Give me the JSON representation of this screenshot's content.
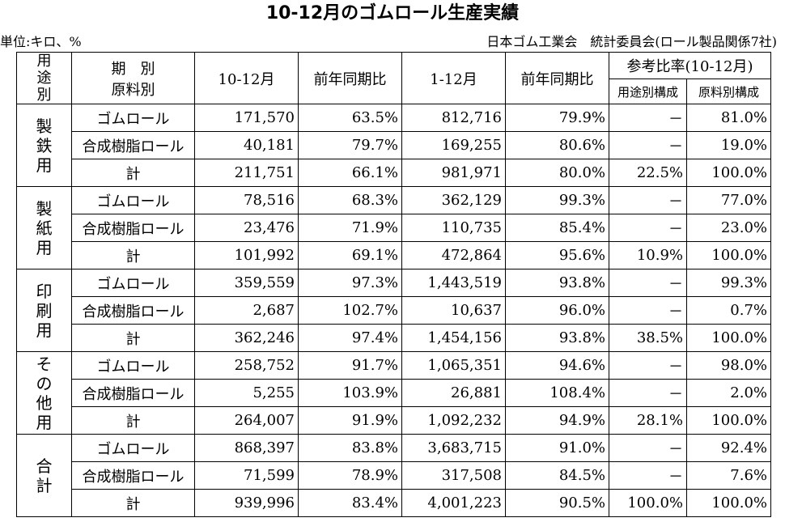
{
  "title": "10-12月のゴムロール生産実績",
  "unit": "単位:キロ、%",
  "source": "日本ゴム工業会　統計委員会(ロール製品関係7社)",
  "header": {
    "usage": "用途別",
    "period": "期　別",
    "material": "原料別",
    "col_q4": "10-12月",
    "col_q4_yoy": "前年同期比",
    "col_year": "1-12月",
    "col_year_yoy": "前年同期比",
    "ref_ratio": "参考比率(10-12月)",
    "ref_usage": "用途別構成",
    "ref_material": "原料別構成"
  },
  "groups": [
    {
      "label": "製鉄用",
      "rows": [
        {
          "name": "ゴムロール",
          "q4": "171,570",
          "q4_yoy": "63.5%",
          "year": "812,716",
          "year_yoy": "79.9%",
          "usage_ratio": "－",
          "material_ratio": "81.0%"
        },
        {
          "name": "合成樹脂ロール",
          "q4": "40,181",
          "q4_yoy": "79.7%",
          "year": "169,255",
          "year_yoy": "80.6%",
          "usage_ratio": "－",
          "material_ratio": "19.0%"
        },
        {
          "name": "計",
          "q4": "211,751",
          "q4_yoy": "66.1%",
          "year": "981,971",
          "year_yoy": "80.0%",
          "usage_ratio": "22.5%",
          "material_ratio": "100.0%"
        }
      ]
    },
    {
      "label": "製紙用",
      "rows": [
        {
          "name": "ゴムロール",
          "q4": "78,516",
          "q4_yoy": "68.3%",
          "year": "362,129",
          "year_yoy": "99.3%",
          "usage_ratio": "－",
          "material_ratio": "77.0%"
        },
        {
          "name": "合成樹脂ロール",
          "q4": "23,476",
          "q4_yoy": "71.9%",
          "year": "110,735",
          "year_yoy": "85.4%",
          "usage_ratio": "－",
          "material_ratio": "23.0%"
        },
        {
          "name": "計",
          "q4": "101,992",
          "q4_yoy": "69.1%",
          "year": "472,864",
          "year_yoy": "95.6%",
          "usage_ratio": "10.9%",
          "material_ratio": "100.0%"
        }
      ]
    },
    {
      "label": "印刷用",
      "rows": [
        {
          "name": "ゴムロール",
          "q4": "359,559",
          "q4_yoy": "97.3%",
          "year": "1,443,519",
          "year_yoy": "93.8%",
          "usage_ratio": "－",
          "material_ratio": "99.3%"
        },
        {
          "name": "合成樹脂ロール",
          "q4": "2,687",
          "q4_yoy": "102.7%",
          "year": "10,637",
          "year_yoy": "96.0%",
          "usage_ratio": "－",
          "material_ratio": "0.7%"
        },
        {
          "name": "計",
          "q4": "362,246",
          "q4_yoy": "97.4%",
          "year": "1,454,156",
          "year_yoy": "93.8%",
          "usage_ratio": "38.5%",
          "material_ratio": "100.0%"
        }
      ]
    },
    {
      "label": "その他用",
      "rows": [
        {
          "name": "ゴムロール",
          "q4": "258,752",
          "q4_yoy": "91.7%",
          "year": "1,065,351",
          "year_yoy": "94.6%",
          "usage_ratio": "－",
          "material_ratio": "98.0%"
        },
        {
          "name": "合成樹脂ロール",
          "q4": "5,255",
          "q4_yoy": "103.9%",
          "year": "26,881",
          "year_yoy": "108.4%",
          "usage_ratio": "－",
          "material_ratio": "2.0%"
        },
        {
          "name": "計",
          "q4": "264,007",
          "q4_yoy": "91.9%",
          "year": "1,092,232",
          "year_yoy": "94.9%",
          "usage_ratio": "28.1%",
          "material_ratio": "100.0%"
        }
      ]
    },
    {
      "label": "合計",
      "rows": [
        {
          "name": "ゴムロール",
          "q4": "868,397",
          "q4_yoy": "83.8%",
          "year": "3,683,715",
          "year_yoy": "91.0%",
          "usage_ratio": "－",
          "material_ratio": "92.4%"
        },
        {
          "name": "合成樹脂ロール",
          "q4": "71,599",
          "q4_yoy": "78.9%",
          "year": "317,508",
          "year_yoy": "84.5%",
          "usage_ratio": "－",
          "material_ratio": "7.6%"
        },
        {
          "name": "計",
          "q4": "939,996",
          "q4_yoy": "83.4%",
          "year": "4,001,223",
          "year_yoy": "90.5%",
          "usage_ratio": "100.0%",
          "material_ratio": "100.0%"
        }
      ]
    }
  ]
}
